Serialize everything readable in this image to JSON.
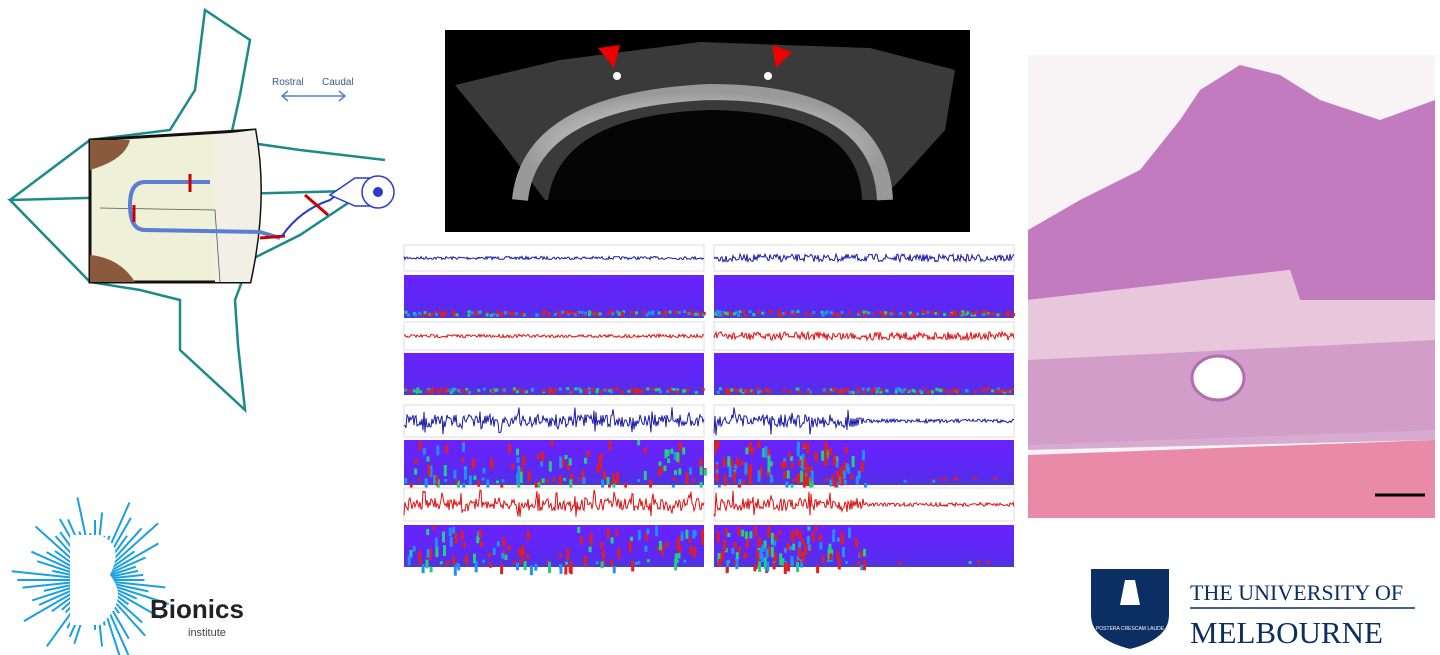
{
  "labels": {
    "rostral": "Rostral",
    "caudal": "Caudal"
  },
  "logos": {
    "bionics": {
      "name": "Bionics",
      "sub": "institute"
    },
    "melbourne": {
      "line1": "THE UNIVERSITY OF",
      "line2": "MELBOURNE",
      "motto": "POSTERA CRESCAM LAUDE"
    }
  }
}
